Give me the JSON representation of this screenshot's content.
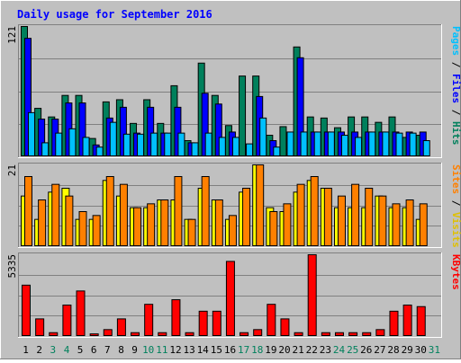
{
  "title": "Daily usage for September 2016",
  "colors": {
    "background": "#C0C0C0",
    "hits": "#00805C",
    "files": "#0000FF",
    "pages": "#00C0FF",
    "sites": "#FF8000",
    "visits": "#FFFF00",
    "kbytes": "#FF0000",
    "title_text": "#0000FF",
    "weekend_label": "#00805C",
    "weekday_label": "#000000"
  },
  "chart_data": [
    {
      "type": "bar",
      "panel": "hits-files-pages",
      "y_max_label": "121",
      "ylim": [
        0,
        121
      ],
      "right_legend": [
        {
          "text": "Hits",
          "color": "#00805C"
        },
        {
          "text": "Files",
          "color": "#0000FF"
        },
        {
          "text": "Pages",
          "color": "#00C0FF"
        }
      ],
      "legend_separator": " / ",
      "categories": [
        "1",
        "2",
        "3",
        "4",
        "5",
        "6",
        "7",
        "8",
        "9",
        "10",
        "11",
        "12",
        "13",
        "14",
        "15",
        "16",
        "17",
        "18",
        "19",
        "20",
        "21",
        "22",
        "23",
        "24",
        "25",
        "26",
        "27",
        "28",
        "29",
        "30",
        "31"
      ],
      "series": [
        {
          "name": "Hits",
          "values": [
            121,
            45,
            37,
            57,
            57,
            17,
            51,
            53,
            31,
            53,
            31,
            66,
            15,
            87,
            57,
            29,
            75,
            75,
            20,
            28,
            102,
            37,
            36,
            27,
            37,
            37,
            32,
            37,
            18,
            20,
            0
          ]
        },
        {
          "name": "Files",
          "values": [
            110,
            35,
            35,
            50,
            50,
            11,
            36,
            46,
            22,
            46,
            22,
            46,
            13,
            59,
            49,
            23,
            0,
            56,
            15,
            0,
            92,
            23,
            23,
            23,
            23,
            23,
            23,
            23,
            23,
            23,
            0
          ]
        },
        {
          "name": "Pages",
          "values": [
            41,
            13,
            22,
            26,
            18,
            9,
            32,
            21,
            21,
            22,
            22,
            22,
            13,
            22,
            18,
            18,
            12,
            36,
            9,
            23,
            23,
            23,
            23,
            20,
            18,
            23,
            23,
            22,
            22,
            15,
            0
          ]
        }
      ]
    },
    {
      "type": "bar",
      "panel": "sites-visits",
      "y_max_label": "21",
      "ylim": [
        0,
        21
      ],
      "right_legend": [
        {
          "text": "Visits",
          "color": "#E0C000"
        },
        {
          "text": "Sites",
          "color": "#FF8000"
        }
      ],
      "legend_separator": " / ",
      "categories": [
        "1",
        "2",
        "3",
        "4",
        "5",
        "6",
        "7",
        "8",
        "9",
        "10",
        "11",
        "12",
        "13",
        "14",
        "15",
        "16",
        "17",
        "18",
        "19",
        "20",
        "21",
        "22",
        "23",
        "24",
        "25",
        "26",
        "27",
        "28",
        "29",
        "30",
        "31"
      ],
      "series": [
        {
          "name": "Visits",
          "values": [
            13,
            7,
            14,
            15,
            7,
            7,
            17,
            13,
            10,
            10,
            12,
            12,
            7,
            15,
            12,
            7,
            14,
            21,
            10,
            9,
            14,
            17,
            15,
            10,
            10,
            10,
            13,
            10,
            10,
            7,
            0
          ]
        },
        {
          "name": "Sites",
          "values": [
            18,
            12,
            16,
            13,
            9,
            8,
            18,
            16,
            10,
            11,
            12,
            18,
            7,
            18,
            12,
            8,
            15,
            21,
            9,
            11,
            16,
            18,
            15,
            13,
            16,
            15,
            13,
            11,
            12,
            11,
            0
          ]
        }
      ]
    },
    {
      "type": "bar",
      "panel": "kbytes",
      "y_max_label": "5335",
      "ylim": [
        0,
        5335
      ],
      "right_legend": [
        {
          "text": "KBytes",
          "color": "#FF0000"
        }
      ],
      "legend_separator": "",
      "categories": [
        "1",
        "2",
        "3",
        "4",
        "5",
        "6",
        "7",
        "8",
        "9",
        "10",
        "11",
        "12",
        "13",
        "14",
        "15",
        "16",
        "17",
        "18",
        "19",
        "20",
        "21",
        "22",
        "23",
        "24",
        "25",
        "26",
        "27",
        "28",
        "29",
        "30",
        "31"
      ],
      "series": [
        {
          "name": "KBytes",
          "values": [
            3350,
            1150,
            250,
            2050,
            2970,
            170,
            450,
            1150,
            250,
            2100,
            250,
            2400,
            250,
            1650,
            1650,
            4900,
            250,
            450,
            2100,
            1150,
            250,
            5335,
            250,
            250,
            250,
            250,
            450,
            1650,
            2050,
            1950,
            0
          ]
        }
      ]
    }
  ],
  "day_labels": [
    {
      "text": "1",
      "weekend": false
    },
    {
      "text": "2",
      "weekend": false
    },
    {
      "text": "3",
      "weekend": true
    },
    {
      "text": "4",
      "weekend": true
    },
    {
      "text": "5",
      "weekend": false
    },
    {
      "text": "6",
      "weekend": false
    },
    {
      "text": "7",
      "weekend": false
    },
    {
      "text": "8",
      "weekend": false
    },
    {
      "text": "9",
      "weekend": false
    },
    {
      "text": "10",
      "weekend": true
    },
    {
      "text": "11",
      "weekend": true
    },
    {
      "text": "12",
      "weekend": false
    },
    {
      "text": "13",
      "weekend": false
    },
    {
      "text": "14",
      "weekend": false
    },
    {
      "text": "15",
      "weekend": false
    },
    {
      "text": "16",
      "weekend": false
    },
    {
      "text": "17",
      "weekend": true
    },
    {
      "text": "18",
      "weekend": true
    },
    {
      "text": "19",
      "weekend": false
    },
    {
      "text": "20",
      "weekend": false
    },
    {
      "text": "21",
      "weekend": false
    },
    {
      "text": "22",
      "weekend": false
    },
    {
      "text": "23",
      "weekend": false
    },
    {
      "text": "24",
      "weekend": true
    },
    {
      "text": "25",
      "weekend": true
    },
    {
      "text": "26",
      "weekend": false
    },
    {
      "text": "27",
      "weekend": false
    },
    {
      "text": "28",
      "weekend": false
    },
    {
      "text": "29",
      "weekend": false
    },
    {
      "text": "30",
      "weekend": false
    },
    {
      "text": "31",
      "weekend": true
    }
  ]
}
